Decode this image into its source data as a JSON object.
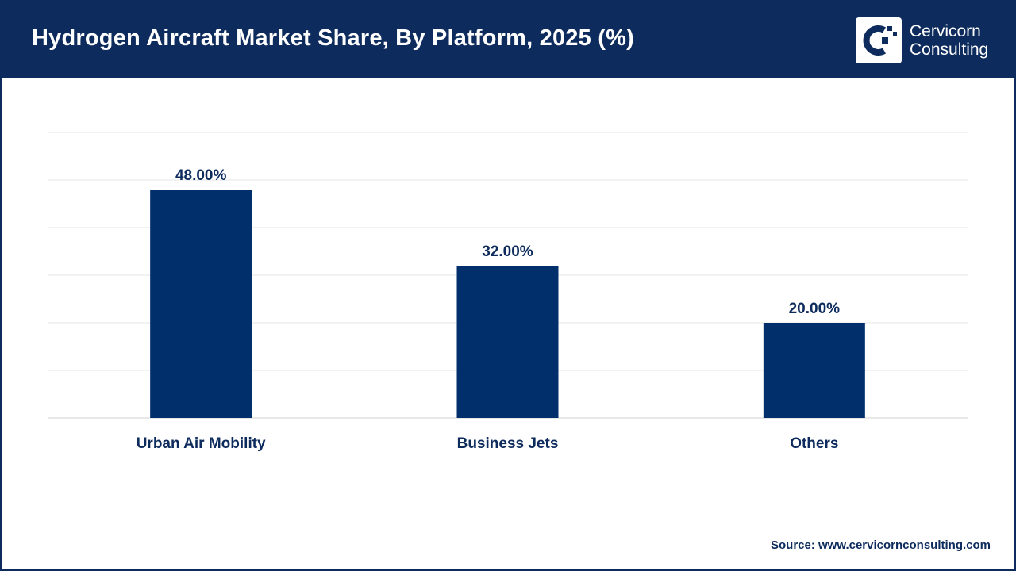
{
  "header": {
    "title": "Hydrogen Aircraft Market Share, By Platform, 2025 (%)",
    "logo_line1": "Cervicorn",
    "logo_line2": "Consulting",
    "bg_color": "#0d2b5c"
  },
  "chart_data": {
    "type": "bar",
    "categories": [
      "Urban Air Mobility",
      "Business Jets",
      "Others"
    ],
    "values": [
      48,
      32,
      20
    ],
    "data_labels": [
      "48.00%",
      "32.00%",
      "20.00%"
    ],
    "ylim": [
      0,
      60
    ],
    "grid": true,
    "bar_color": "#002f6c"
  },
  "footer": {
    "source": "Source: www.cervicornconsulting.com"
  }
}
